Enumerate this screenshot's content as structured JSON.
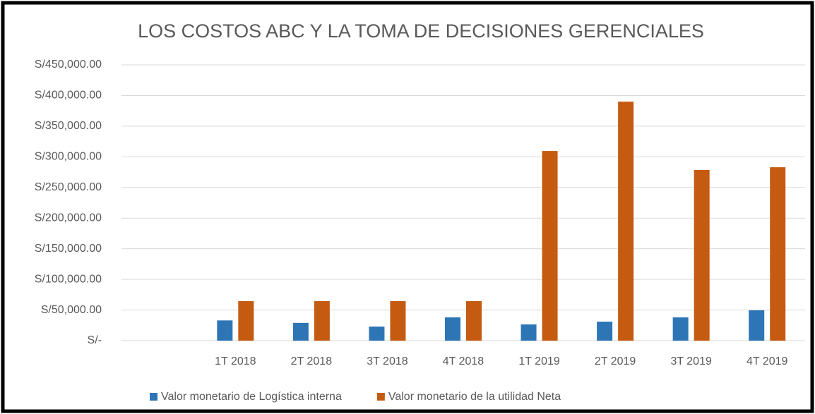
{
  "chart_data": {
    "type": "bar",
    "title": "LOS COSTOS ABC Y LA TOMA DE DECISIONES GERENCIALES",
    "categories": [
      null,
      "1T 2018",
      "2T 2018",
      "3T 2018",
      "4T 2018",
      "1T 2019",
      "2T 2019",
      "3T 2019",
      "4T 2019"
    ],
    "series": [
      {
        "name": "Valor monetario de Logística interna",
        "color": "#2e75b6",
        "values": [
          null,
          33000,
          29000,
          23000,
          38000,
          26500,
          31000,
          38000,
          49500
        ]
      },
      {
        "name": "Valor monetario de la utilidad Neta",
        "color": "#c55a11",
        "values": [
          null,
          64500,
          64500,
          64500,
          64500,
          309500,
          390000,
          278500,
          283000
        ]
      }
    ],
    "ylim": [
      0,
      450000
    ],
    "yticks": [
      {
        "value": 0,
        "label": "S/-"
      },
      {
        "value": 50000,
        "label": "S/50,000.00"
      },
      {
        "value": 100000,
        "label": "S/100,000.00"
      },
      {
        "value": 150000,
        "label": "S/150,000.00"
      },
      {
        "value": 200000,
        "label": "S/200,000.00"
      },
      {
        "value": 250000,
        "label": "S/250,000.00"
      },
      {
        "value": 300000,
        "label": "S/300,000.00"
      },
      {
        "value": 350000,
        "label": "S/350,000.00"
      },
      {
        "value": 400000,
        "label": "S/400,000.00"
      },
      {
        "value": 450000,
        "label": "S/450,000.00"
      }
    ],
    "grid": true,
    "legend": "bottom"
  }
}
